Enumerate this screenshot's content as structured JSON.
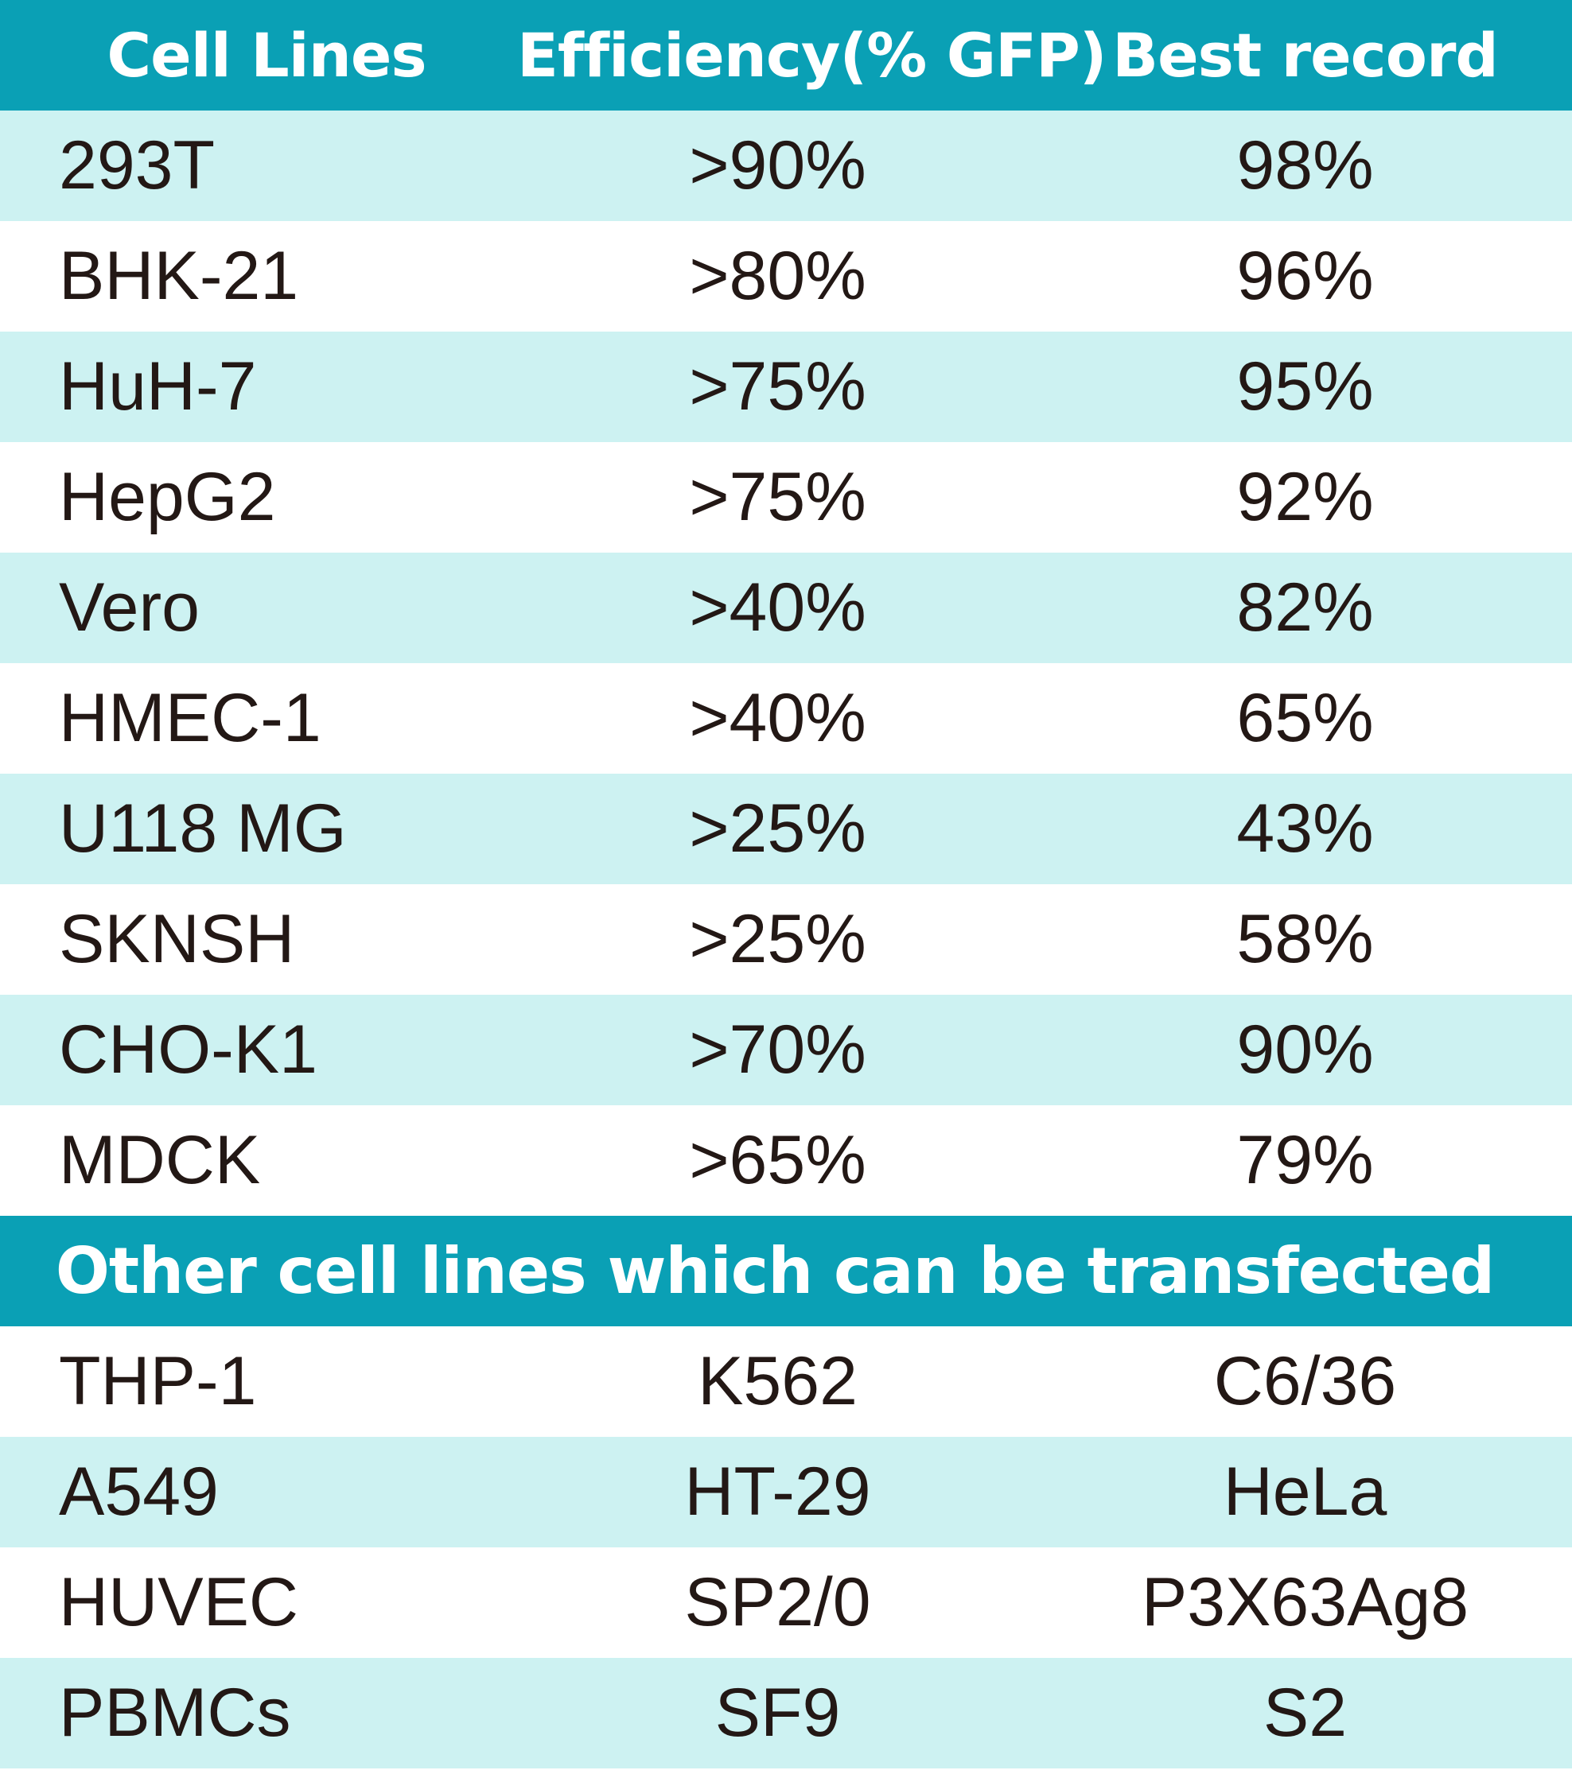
{
  "header": {
    "cell_lines": "Cell Lines",
    "efficiency": "Efficiency(% GFP)",
    "best_record": "Best record"
  },
  "rows": [
    {
      "cell_line": "293T",
      "efficiency": ">90%",
      "best": "98%"
    },
    {
      "cell_line": "BHK-21",
      "efficiency": ">80%",
      "best": "96%"
    },
    {
      "cell_line": "HuH-7",
      "efficiency": ">75%",
      "best": "95%"
    },
    {
      "cell_line": "HepG2",
      "efficiency": ">75%",
      "best": "92%"
    },
    {
      "cell_line": "Vero",
      "efficiency": ">40%",
      "best": "82%"
    },
    {
      "cell_line": "HMEC-1",
      "efficiency": ">40%",
      "best": "65%"
    },
    {
      "cell_line": "U118 MG",
      "efficiency": ">25%",
      "best": "43%"
    },
    {
      "cell_line": "SKNSH",
      "efficiency": ">25%",
      "best": "58%"
    },
    {
      "cell_line": "CHO-K1",
      "efficiency": ">70%",
      "best": "90%"
    },
    {
      "cell_line": "MDCK",
      "efficiency": ">65%",
      "best": "79%"
    }
  ],
  "other_section": {
    "title": "Other cell lines which can be transfected",
    "rows": [
      [
        "THP-1",
        "K562",
        "C6/36"
      ],
      [
        "A549",
        "HT-29",
        "HeLa"
      ],
      [
        "HUVEC",
        "SP2/0",
        "P3X63Ag8"
      ],
      [
        "PBMCs",
        "SF9",
        "S2"
      ]
    ]
  },
  "colors": {
    "header_bg": "#0aa0b5",
    "tint_row_bg": "#cdf2f2",
    "plain_row_bg": "#ffffff",
    "text": "#231815",
    "header_text": "#ffffff"
  }
}
